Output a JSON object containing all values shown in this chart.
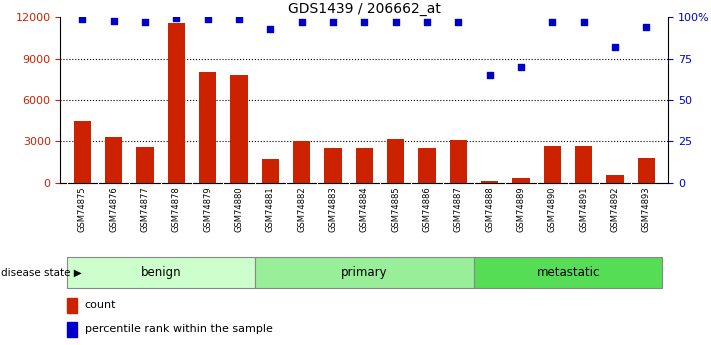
{
  "title": "GDS1439 / 206662_at",
  "samples": [
    "GSM74875",
    "GSM74876",
    "GSM74877",
    "GSM74878",
    "GSM74879",
    "GSM74880",
    "GSM74881",
    "GSM74882",
    "GSM74883",
    "GSM74884",
    "GSM74885",
    "GSM74886",
    "GSM74887",
    "GSM74888",
    "GSM74889",
    "GSM74890",
    "GSM74891",
    "GSM74892",
    "GSM74893"
  ],
  "counts": [
    4500,
    3300,
    2600,
    11600,
    8000,
    7800,
    1700,
    3000,
    2500,
    2500,
    3200,
    2500,
    3100,
    150,
    350,
    2700,
    2700,
    600,
    1800
  ],
  "percentiles": [
    99,
    98,
    97,
    99.5,
    99,
    99,
    93,
    97,
    97,
    97,
    97,
    97,
    97,
    65,
    70,
    97,
    97,
    82,
    94
  ],
  "groups": [
    {
      "label": "benign",
      "start": 0,
      "end": 6,
      "color": "#ccffcc"
    },
    {
      "label": "primary",
      "start": 6,
      "end": 13,
      "color": "#99ee99"
    },
    {
      "label": "metastatic",
      "start": 13,
      "end": 19,
      "color": "#55dd55"
    }
  ],
  "bar_color": "#cc2200",
  "dot_color": "#0000cc",
  "left_ylim": [
    0,
    12000
  ],
  "right_ylim": [
    0,
    100
  ],
  "left_yticks": [
    0,
    3000,
    6000,
    9000,
    12000
  ],
  "right_yticks": [
    0,
    25,
    50,
    75,
    100
  ],
  "right_yticklabels": [
    "0",
    "25",
    "50",
    "75",
    "100%"
  ],
  "grid_values": [
    3000,
    6000,
    9000
  ],
  "legend_count_label": "count",
  "legend_pct_label": "percentile rank within the sample",
  "disease_state_label": "disease state",
  "xtick_bg_color": "#cccccc",
  "background_color": "#ffffff"
}
